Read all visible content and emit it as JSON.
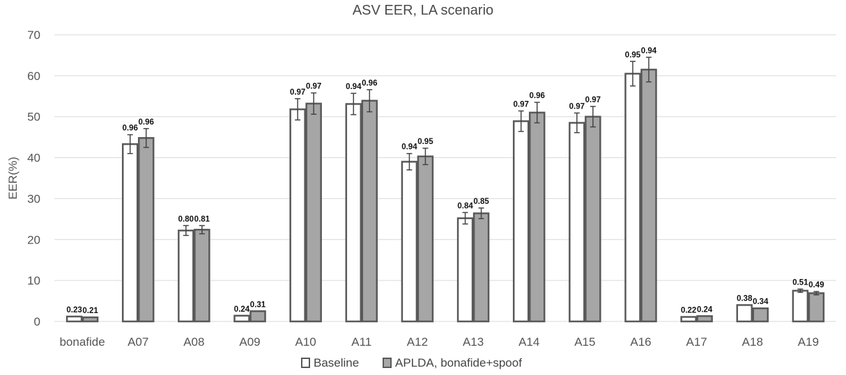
{
  "chart_data": {
    "type": "bar",
    "title": "ASV EER, LA scenario",
    "xlabel": "",
    "ylabel": "EER(%)",
    "ylim": [
      0,
      70
    ],
    "yticks": [
      0,
      10,
      20,
      30,
      40,
      50,
      60,
      70
    ],
    "grid": true,
    "legend_position": "bottom",
    "categories": [
      "bonafide",
      "A07",
      "A08",
      "A09",
      "A10",
      "A11",
      "A12",
      "A13",
      "A14",
      "A15",
      "A16",
      "A17",
      "A18",
      "A19"
    ],
    "series": [
      {
        "name": "Baseline",
        "color": "#ffffff",
        "stroke": "#595959",
        "values": [
          1.2,
          43.3,
          22.2,
          1.4,
          51.8,
          53.1,
          39.0,
          25.2,
          48.9,
          48.5,
          60.5,
          1.1,
          4.0,
          7.5
        ],
        "error": [
          0.0,
          2.3,
          1.2,
          0.0,
          2.6,
          2.6,
          2.0,
          1.4,
          2.5,
          2.4,
          3.0,
          0.0,
          0.0,
          0.4
        ],
        "labels": [
          "0.23",
          "0.96",
          "0.80",
          "0.24",
          "0.97",
          "0.94",
          "0.94",
          "0.84",
          "0.97",
          "0.97",
          "0.95",
          "0.22",
          "0.38",
          "0.51"
        ]
      },
      {
        "name": "APLDA, bonafide+spoof",
        "color": "#a6a6a6",
        "stroke": "#595959",
        "values": [
          1.0,
          44.8,
          22.4,
          2.5,
          53.2,
          53.9,
          40.3,
          26.4,
          51.0,
          50.0,
          61.5,
          1.3,
          3.2,
          6.9
        ],
        "error": [
          0.0,
          2.3,
          1.0,
          0.0,
          2.6,
          2.7,
          2.0,
          1.3,
          2.5,
          2.5,
          3.0,
          0.0,
          0.0,
          0.4
        ],
        "labels": [
          "0.21",
          "0.96",
          "0.81",
          "0.31",
          "0.97",
          "0.96",
          "0.95",
          "0.85",
          "0.96",
          "0.97",
          "0.94",
          "0.24",
          "0.34",
          "0.49"
        ]
      }
    ]
  }
}
